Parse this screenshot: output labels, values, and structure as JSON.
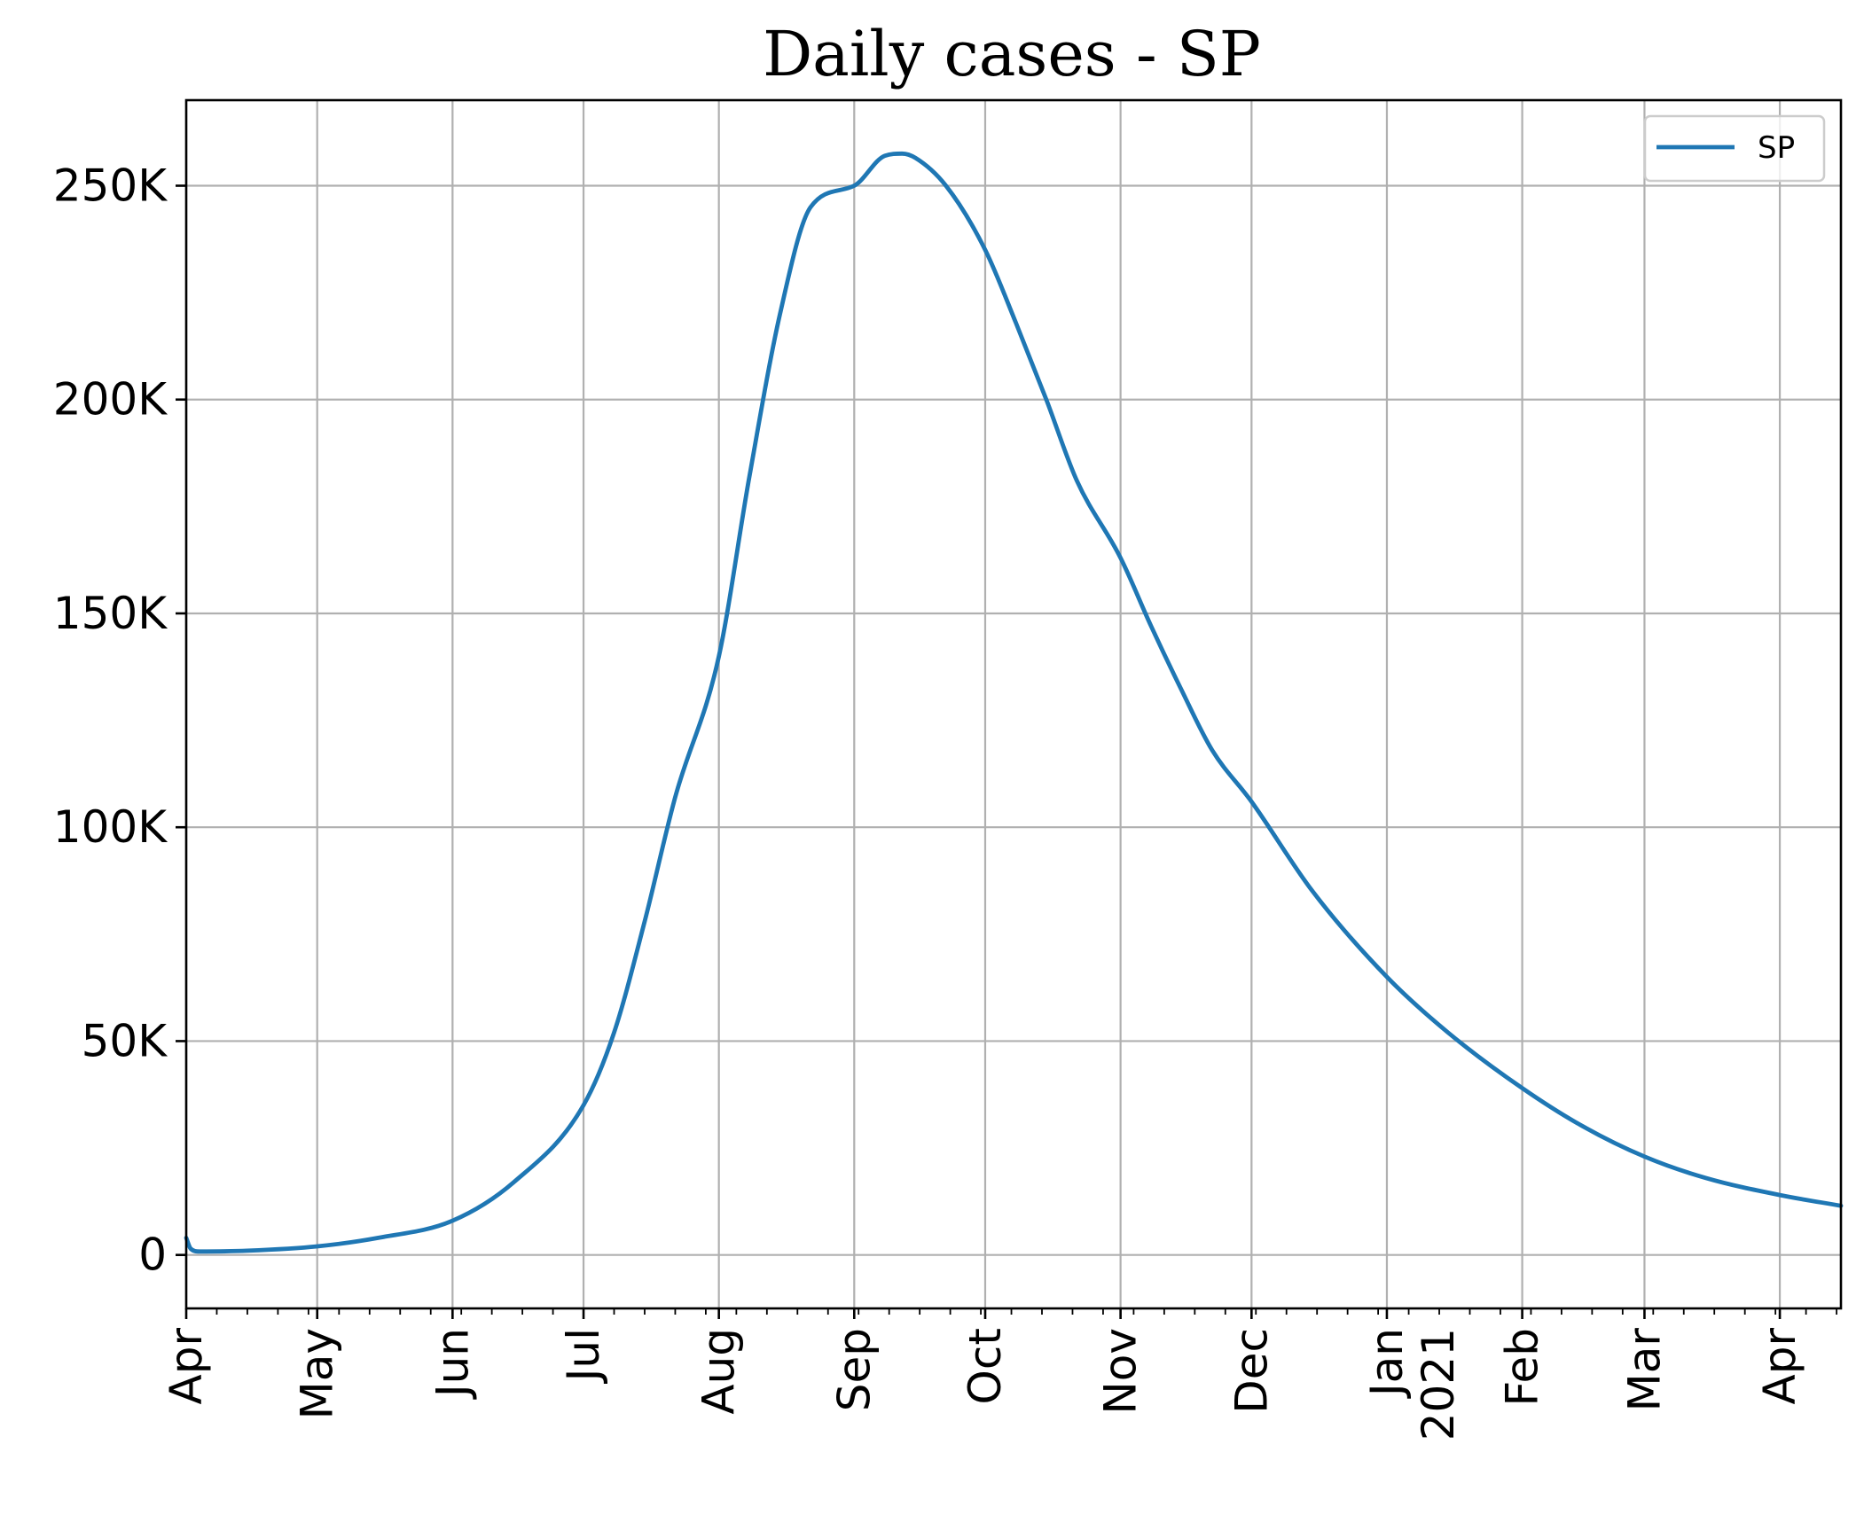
{
  "chart_data": {
    "type": "line",
    "title": "Daily cases - SP",
    "xlabel": "",
    "ylabel": "",
    "x_range": [
      "2020-04-01",
      "2021-04-15"
    ],
    "ylim": [
      -12500,
      270000
    ],
    "grid": true,
    "legend_position": "top-right",
    "series_color": "#1f77b4",
    "x_ticks": [
      {
        "date": "2020-04-01",
        "label": "Apr",
        "sublabel": ""
      },
      {
        "date": "2020-05-01",
        "label": "May",
        "sublabel": ""
      },
      {
        "date": "2020-06-01",
        "label": "Jun",
        "sublabel": ""
      },
      {
        "date": "2020-07-01",
        "label": "Jul",
        "sublabel": ""
      },
      {
        "date": "2020-08-01",
        "label": "Aug",
        "sublabel": ""
      },
      {
        "date": "2020-09-01",
        "label": "Sep",
        "sublabel": ""
      },
      {
        "date": "2020-10-01",
        "label": "Oct",
        "sublabel": ""
      },
      {
        "date": "2020-11-01",
        "label": "Nov",
        "sublabel": ""
      },
      {
        "date": "2020-12-01",
        "label": "Dec",
        "sublabel": ""
      },
      {
        "date": "2021-01-01",
        "label": "Jan",
        "sublabel": "2021"
      },
      {
        "date": "2021-02-01",
        "label": "Feb",
        "sublabel": ""
      },
      {
        "date": "2021-03-01",
        "label": "Mar",
        "sublabel": ""
      },
      {
        "date": "2021-04-01",
        "label": "Apr",
        "sublabel": ""
      }
    ],
    "y_ticks": [
      {
        "value": 0,
        "label": "0"
      },
      {
        "value": 50000,
        "label": "50K"
      },
      {
        "value": 100000,
        "label": "100K"
      },
      {
        "value": 150000,
        "label": "150K"
      },
      {
        "value": 200000,
        "label": "200K"
      },
      {
        "value": 250000,
        "label": "250K"
      }
    ],
    "series": [
      {
        "name": "SP",
        "x": [
          "2020-04-01",
          "2020-04-02",
          "2020-04-04",
          "2020-04-15",
          "2020-05-01",
          "2020-05-15",
          "2020-06-01",
          "2020-06-15",
          "2020-07-01",
          "2020-07-08",
          "2020-07-15",
          "2020-07-22",
          "2020-08-01",
          "2020-08-08",
          "2020-08-15",
          "2020-08-22",
          "2020-09-01",
          "2020-09-08",
          "2020-09-12",
          "2020-09-15",
          "2020-09-22",
          "2020-10-01",
          "2020-10-08",
          "2020-10-15",
          "2020-10-22",
          "2020-11-01",
          "2020-11-08",
          "2020-11-15",
          "2020-11-22",
          "2020-12-01",
          "2020-12-15",
          "2021-01-01",
          "2021-01-15",
          "2021-02-01",
          "2021-02-15",
          "2021-03-01",
          "2021-03-15",
          "2021-04-01",
          "2021-04-15"
        ],
        "y": [
          4000,
          1500,
          800,
          1000,
          2000,
          4000,
          8000,
          17000,
          35000,
          52000,
          78000,
          107000,
          140000,
          182000,
          220000,
          245000,
          250000,
          257000,
          257500,
          256500,
          250000,
          235000,
          218000,
          200000,
          181000,
          163000,
          147000,
          132000,
          118000,
          106000,
          85000,
          65000,
          52000,
          39000,
          30000,
          23000,
          18000,
          14000,
          11500
        ]
      }
    ]
  }
}
